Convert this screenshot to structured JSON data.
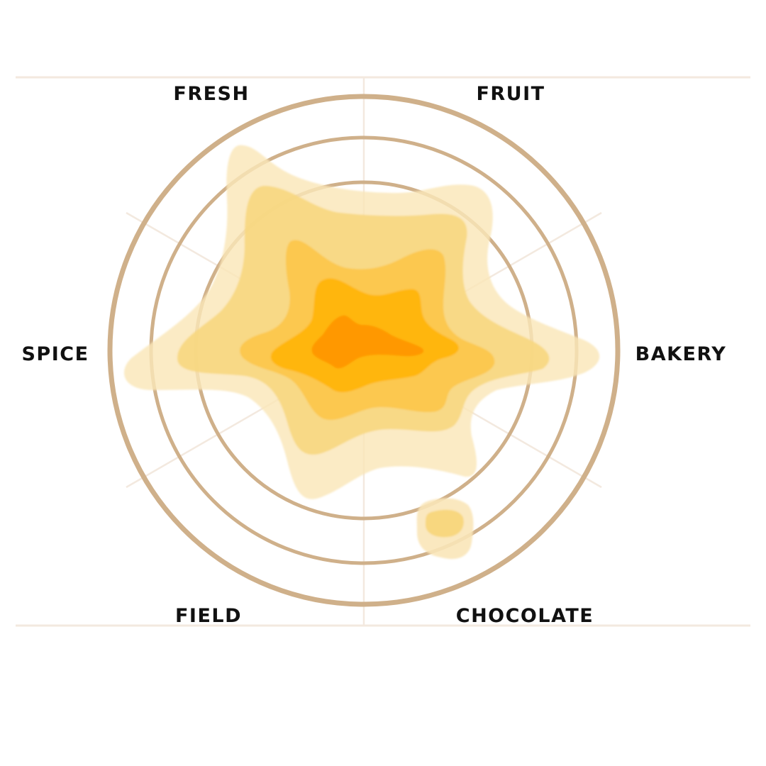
{
  "labels": {
    "fresh": "FRESH",
    "fruit": "FRUIT",
    "spice": "SPICE",
    "bakery": "BAKERY",
    "field": "FIELD",
    "chocolate": "CHOCOLATE"
  },
  "colors": {
    "ring": "#cfb08a",
    "grid": "#f3e9df",
    "level_1": "#fae6b8",
    "level_2": "#f8d77f",
    "level_3": "#fcc74c",
    "level_4": "#ffb504",
    "level_5": "#ff9805"
  }
}
